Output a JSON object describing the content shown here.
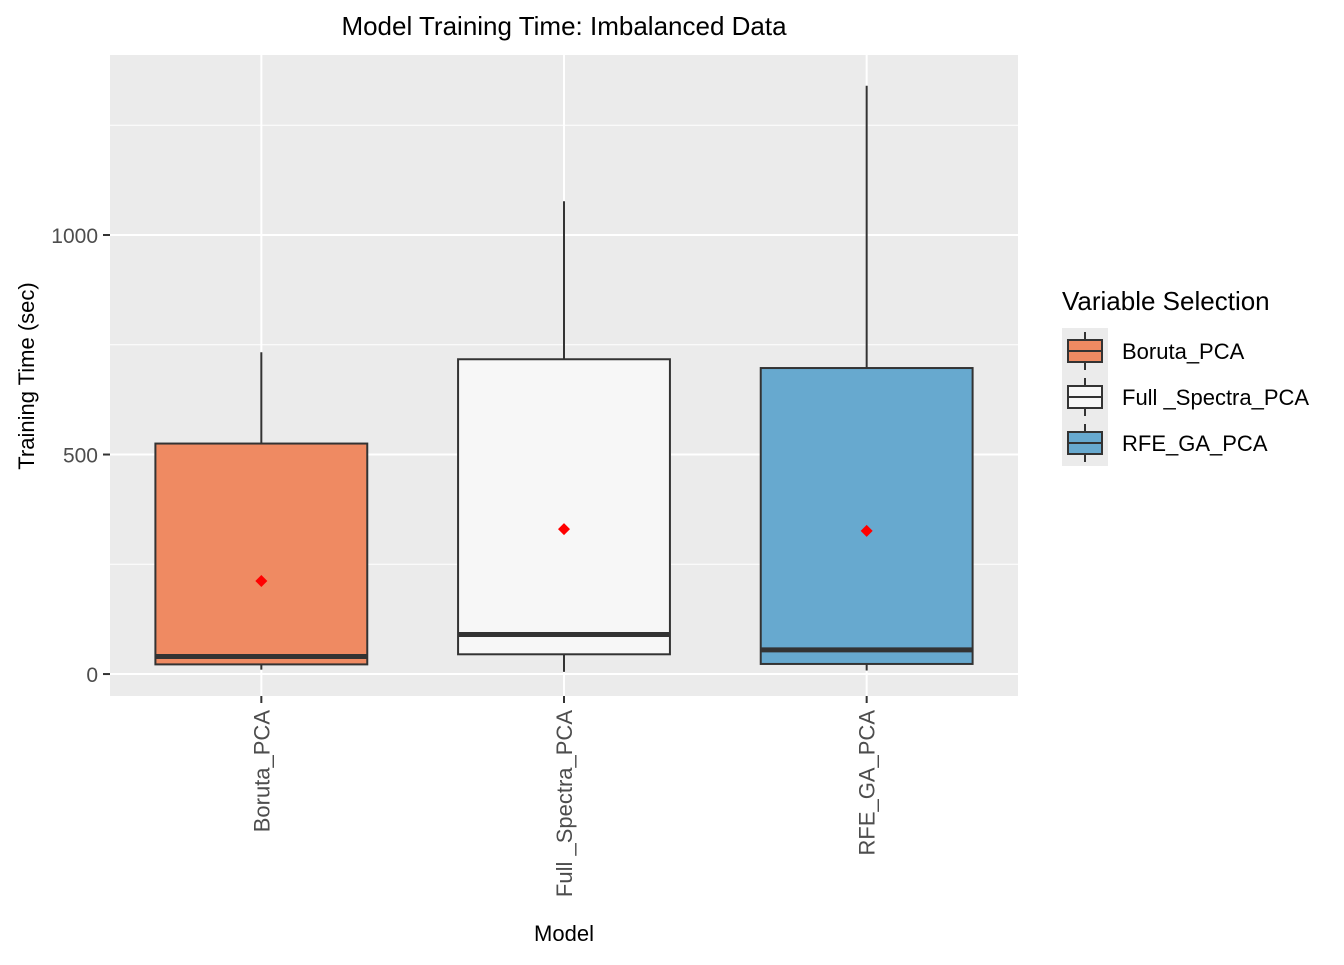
{
  "chart_data": {
    "type": "box",
    "title": "Model Training Time: Imbalanced Data",
    "xlabel": "Model",
    "ylabel": "Training Time (sec)",
    "ylim": [
      -50,
      1410
    ],
    "yticks": [
      0,
      500,
      1000
    ],
    "ytick_labels": [
      "0",
      "500",
      "1000"
    ],
    "grid": true,
    "categories": [
      "Boruta_PCA",
      "Full _Spectra_PCA",
      "RFE_GA_PCA"
    ],
    "boxes": [
      {
        "category": "Boruta_PCA",
        "whisker_low": 10,
        "q1": 22,
        "median": 40,
        "q3": 525,
        "whisker_high": 733,
        "mean": 212,
        "fill": "#ef8a62"
      },
      {
        "category": "Full _Spectra_PCA",
        "whisker_low": 5,
        "q1": 45,
        "median": 90,
        "q3": 717,
        "whisker_high": 1077,
        "mean": 330,
        "fill": "#f7f7f7"
      },
      {
        "category": "RFE_GA_PCA",
        "whisker_low": 8,
        "q1": 23,
        "median": 55,
        "q3": 697,
        "whisker_high": 1340,
        "mean": 326,
        "fill": "#67a9cf"
      }
    ],
    "mean_marker_color": "#ff0000",
    "legend": {
      "title": "Variable Selection",
      "position": "right",
      "entries": [
        {
          "label": "Boruta_PCA",
          "fill": "#ef8a62"
        },
        {
          "label": "Full _Spectra_PCA",
          "fill": "#f7f7f7"
        },
        {
          "label": "RFE_GA_PCA",
          "fill": "#67a9cf"
        }
      ]
    },
    "colors": {
      "panel_bg": "#ebebeb",
      "grid_line": "#ffffff",
      "box_stroke": "#333333",
      "axis_text": "#4d4d4d",
      "title_text": "#000000"
    }
  }
}
